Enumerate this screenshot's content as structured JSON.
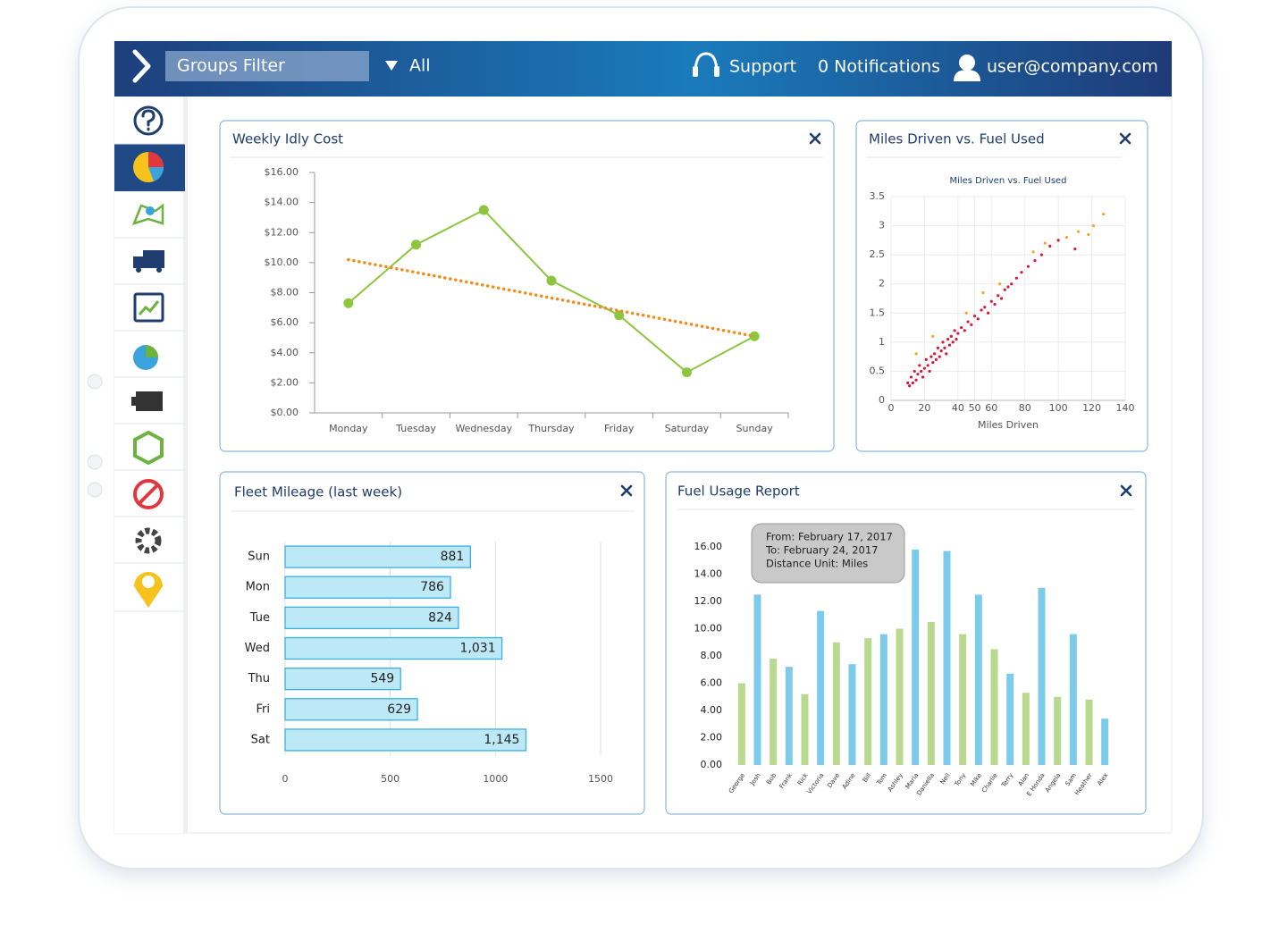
{
  "header": {
    "filter": "Groups Filter",
    "group": "All",
    "support": "Support",
    "notifications": "0 Notifications",
    "user": "user@company.com"
  },
  "chart_data": [
    {
      "type": "line",
      "title": "Weekly Idly Cost",
      "categories": [
        "Monday",
        "Tuesday",
        "Wednesday",
        "Thursday",
        "Friday",
        "Saturday",
        "Sunday"
      ],
      "series": [
        {
          "color": "#8cc63f",
          "style": "solid",
          "markers": true,
          "values": [
            7.3,
            11.2,
            13.5,
            8.8,
            6.5,
            2.7,
            5.1
          ]
        },
        {
          "color": "#f28c1e",
          "style": "dotted",
          "markers": false,
          "values": [
            10.2,
            9.35,
            8.5,
            7.65,
            6.8,
            5.95,
            5.1
          ]
        }
      ],
      "ylim": [
        0,
        16
      ],
      "yticks": [
        {
          "value": 0,
          "label": "$0.00"
        },
        {
          "value": 2,
          "label": "$2.00"
        },
        {
          "value": 4,
          "label": "$4.00"
        },
        {
          "value": 6,
          "label": "$6.00"
        },
        {
          "value": 8,
          "label": "$8.00"
        },
        {
          "value": 10,
          "label": "$10.00"
        },
        {
          "value": 12,
          "label": "$12.00"
        },
        {
          "value": 14,
          "label": "$14.00"
        },
        {
          "value": 16,
          "label": "$16.00"
        }
      ],
      "grid": false
    },
    {
      "type": "scatter",
      "title": "Miles Driven vs. Fuel Used",
      "plot_title": "Miles Driven vs. Fuel Used",
      "xlabel": "Miles Driven",
      "series": [
        {
          "color": "#d7193a",
          "x": [
            10,
            11,
            12,
            13,
            14,
            15,
            16,
            17,
            18,
            19,
            20,
            21,
            22,
            23,
            24,
            25,
            26,
            27,
            28,
            29,
            30,
            31,
            32,
            33,
            34,
            35,
            36,
            37,
            38,
            39,
            40,
            42,
            44,
            46,
            48,
            50,
            52,
            54,
            56,
            58,
            60,
            62,
            64,
            66,
            68,
            70,
            72,
            75,
            78,
            82,
            86,
            90,
            95,
            100,
            110
          ],
          "values": [
            0.3,
            0.25,
            0.4,
            0.3,
            0.5,
            0.35,
            0.45,
            0.6,
            0.5,
            0.4,
            0.55,
            0.7,
            0.6,
            0.5,
            0.75,
            0.65,
            0.8,
            0.7,
            0.9,
            0.75,
            0.85,
            1.0,
            0.9,
            0.8,
            1.05,
            0.95,
            1.1,
            1.0,
            1.2,
            1.05,
            1.15,
            1.25,
            1.2,
            1.35,
            1.3,
            1.45,
            1.4,
            1.55,
            1.6,
            1.5,
            1.7,
            1.65,
            1.8,
            1.75,
            1.9,
            1.95,
            2.0,
            2.1,
            2.2,
            2.3,
            2.4,
            2.5,
            2.65,
            2.75,
            2.6
          ]
        },
        {
          "color": "#f5a623",
          "x": [
            15,
            25,
            45,
            55,
            65,
            85,
            92,
            105,
            112,
            118,
            121,
            127
          ],
          "values": [
            0.8,
            1.1,
            1.5,
            1.85,
            2.0,
            2.55,
            2.7,
            2.8,
            2.9,
            2.85,
            3.0,
            3.2
          ]
        }
      ],
      "xlim": [
        0,
        140
      ],
      "xticks": [
        0,
        20,
        40,
        50,
        60,
        80,
        100,
        120,
        140
      ],
      "ylim": [
        0,
        3.5
      ],
      "yticks": [
        0,
        0.5,
        1,
        1.5,
        2,
        2.5,
        3,
        3.5
      ],
      "grid": true
    },
    {
      "type": "bar",
      "orientation": "horizontal",
      "title": "Fleet Mileage (last week)",
      "categories": [
        "Sun",
        "Mon",
        "Tue",
        "Wed",
        "Thu",
        "Fri",
        "Sat"
      ],
      "values": [
        881,
        786,
        824,
        1031,
        549,
        629,
        1145
      ],
      "value_labels": [
        "881",
        "786",
        "824",
        "1,031",
        "549",
        "629",
        "1,145"
      ],
      "color": "#bde9f7",
      "edge_color": "#3ab0dc",
      "xlim": [
        0,
        1500
      ],
      "xticks": [
        0,
        500,
        1000,
        1500
      ],
      "grid": true
    },
    {
      "type": "bar",
      "orientation": "vertical",
      "title": "Fuel Usage Report",
      "categories": [
        "George",
        "Josh",
        "Bob",
        "Frank",
        "Rick",
        "Victoria",
        "Dave",
        "Adine",
        "Bill",
        "Tom",
        "Ashley",
        "Maria",
        "Daniella",
        "Neil",
        "Tony",
        "Mike",
        "Charlie",
        "Terry",
        "Alan",
        "E Honda",
        "Angela",
        "Sam",
        "Heather",
        "Alex"
      ],
      "values": [
        6.0,
        12.5,
        7.8,
        7.2,
        5.2,
        11.3,
        9.0,
        7.4,
        9.3,
        9.6,
        10.0,
        15.8,
        10.5,
        15.7,
        9.6,
        12.5,
        8.5,
        6.7,
        5.3,
        13.0,
        5.0,
        9.6,
        4.8,
        3.4
      ],
      "colors": [
        "#b8d98e",
        "#7ccbea",
        "#b8d98e",
        "#7ccbea",
        "#b8d98e",
        "#7ccbea",
        "#b8d98e",
        "#7ccbea",
        "#b8d98e",
        "#7ccbea",
        "#b8d98e",
        "#7ccbea",
        "#b8d98e",
        "#7ccbea",
        "#b8d98e",
        "#7ccbea",
        "#b8d98e",
        "#7ccbea",
        "#b8d98e",
        "#7ccbea",
        "#b8d98e",
        "#7ccbea",
        "#b8d98e",
        "#7ccbea"
      ],
      "ylim": [
        0,
        16
      ],
      "yticks": [
        {
          "value": 0,
          "label": "0.00"
        },
        {
          "value": 2,
          "label": "2.00"
        },
        {
          "value": 4,
          "label": "4.00"
        },
        {
          "value": 6,
          "label": "6.00"
        },
        {
          "value": 8,
          "label": "8.00"
        },
        {
          "value": 10,
          "label": "10.00"
        },
        {
          "value": 12,
          "label": "12.00"
        },
        {
          "value": 14,
          "label": "14.00"
        },
        {
          "value": 16,
          "label": "16.00"
        }
      ],
      "annotations": [
        "From: February 17, 2017",
        "To: February 24, 2017",
        "Distance Unit: Miles"
      ],
      "grid": false
    }
  ]
}
